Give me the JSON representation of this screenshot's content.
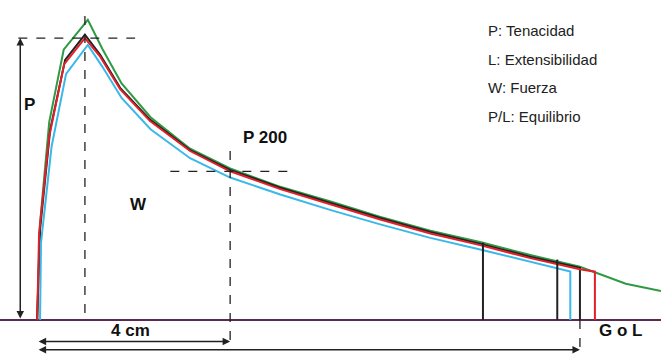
{
  "chart_data": {
    "type": "line",
    "xlim": [
      -0.77,
      12.93
    ],
    "ylim": [
      -0.79,
      6.63
    ],
    "tick_labels": false,
    "grid": false,
    "series": [
      {
        "color": "#2e9a44",
        "x": [
          0,
          0.06,
          0.25,
          0.55,
          1.05,
          1.35,
          1.75,
          2.35,
          3.15,
          4.0,
          5.0,
          6.1,
          7.1,
          8.15,
          9.2,
          10.2,
          11.25,
          12.2,
          12.93
        ],
        "values": [
          0,
          2.0,
          4.1,
          5.6,
          6.22,
          5.62,
          4.9,
          4.2,
          3.56,
          3.14,
          2.77,
          2.45,
          2.14,
          1.85,
          1.61,
          1.35,
          1.1,
          0.75,
          0.6
        ]
      },
      {
        "color": "#222222",
        "x": [
          0,
          0.06,
          0.27,
          0.58,
          0.99,
          1.31,
          1.72,
          2.34,
          3.17,
          4.0,
          5.04,
          6.07,
          7.11,
          8.15,
          9.18,
          10.22,
          11.25,
          11.25
        ],
        "values": [
          0,
          1.87,
          3.94,
          5.39,
          5.91,
          5.49,
          4.81,
          4.15,
          3.52,
          3.11,
          2.74,
          2.42,
          2.11,
          1.82,
          1.58,
          1.31,
          1.08,
          0
        ]
      },
      {
        "color": "#e0202a",
        "x": [
          0,
          0.04,
          0.25,
          0.56,
          0.99,
          1.31,
          1.72,
          2.34,
          3.17,
          4.0,
          5.04,
          6.07,
          7.11,
          8.15,
          9.18,
          10.22,
          11.25,
          11.56,
          11.56
        ],
        "values": [
          0,
          1.8,
          3.8,
          5.3,
          5.84,
          5.45,
          4.78,
          4.12,
          3.5,
          3.08,
          2.71,
          2.39,
          2.08,
          1.79,
          1.55,
          1.28,
          1.05,
          1.0,
          0
        ]
      },
      {
        "color": "#3ab8e8",
        "x": [
          0.06,
          0.08,
          0.3,
          0.6,
          1.05,
          1.35,
          1.75,
          2.35,
          3.17,
          4.0,
          5.04,
          6.07,
          7.11,
          8.15,
          9.18,
          10.22,
          11.05,
          11.05
        ],
        "values": [
          0,
          1.6,
          3.6,
          5.1,
          5.7,
          5.25,
          4.6,
          3.95,
          3.35,
          2.95,
          2.6,
          2.28,
          1.98,
          1.7,
          1.46,
          1.2,
          1.0,
          0
        ]
      },
      {
        "color": "#222222",
        "x": [
          9.24,
          9.24
        ],
        "values": [
          1.6,
          0
        ]
      },
      {
        "color": "#222222",
        "x": [
          10.78,
          10.78
        ],
        "values": [
          1.25,
          0
        ]
      }
    ],
    "guides": [
      {
        "x": [
          -0.39,
          2.03
        ],
        "y": [
          5.84,
          5.84
        ]
      },
      {
        "x": [
          0.99,
          0.99
        ],
        "y": [
          6.3,
          0
        ]
      },
      {
        "x": [
          4.0,
          4.0
        ],
        "y": [
          3.5,
          -0.5
        ]
      },
      {
        "x": [
          2.76,
          5.24
        ],
        "y": [
          3.08,
          3.08
        ]
      },
      {
        "x": [
          11.25,
          11.25
        ],
        "y": [
          0,
          -0.65
        ]
      }
    ],
    "dimensions": [
      {
        "x": [
          -0.35,
          -0.35
        ],
        "y": [
          0,
          5.84
        ]
      },
      {
        "x": [
          0,
          4.0
        ],
        "y": [
          -0.45,
          -0.45
        ]
      },
      {
        "x": [
          0,
          11.25
        ],
        "y": [
          -0.62,
          -0.62
        ]
      }
    ],
    "annotations": [
      {
        "text": "P",
        "x": -0.15,
        "y": 4.46
      },
      {
        "text": "W",
        "x": 2.1,
        "y": 2.4
      },
      {
        "text": "P 200",
        "x": 4.73,
        "y": 3.77
      },
      {
        "text": "4 cm",
        "x": 1.93,
        "y": -0.21
      },
      {
        "text": "G o L",
        "x": 12.1,
        "y": -0.21
      }
    ],
    "notes": [
      "P: Tenacidad",
      "L: Extensibilidad",
      "W: Fuerza",
      "P/L: Equilibrio"
    ]
  }
}
